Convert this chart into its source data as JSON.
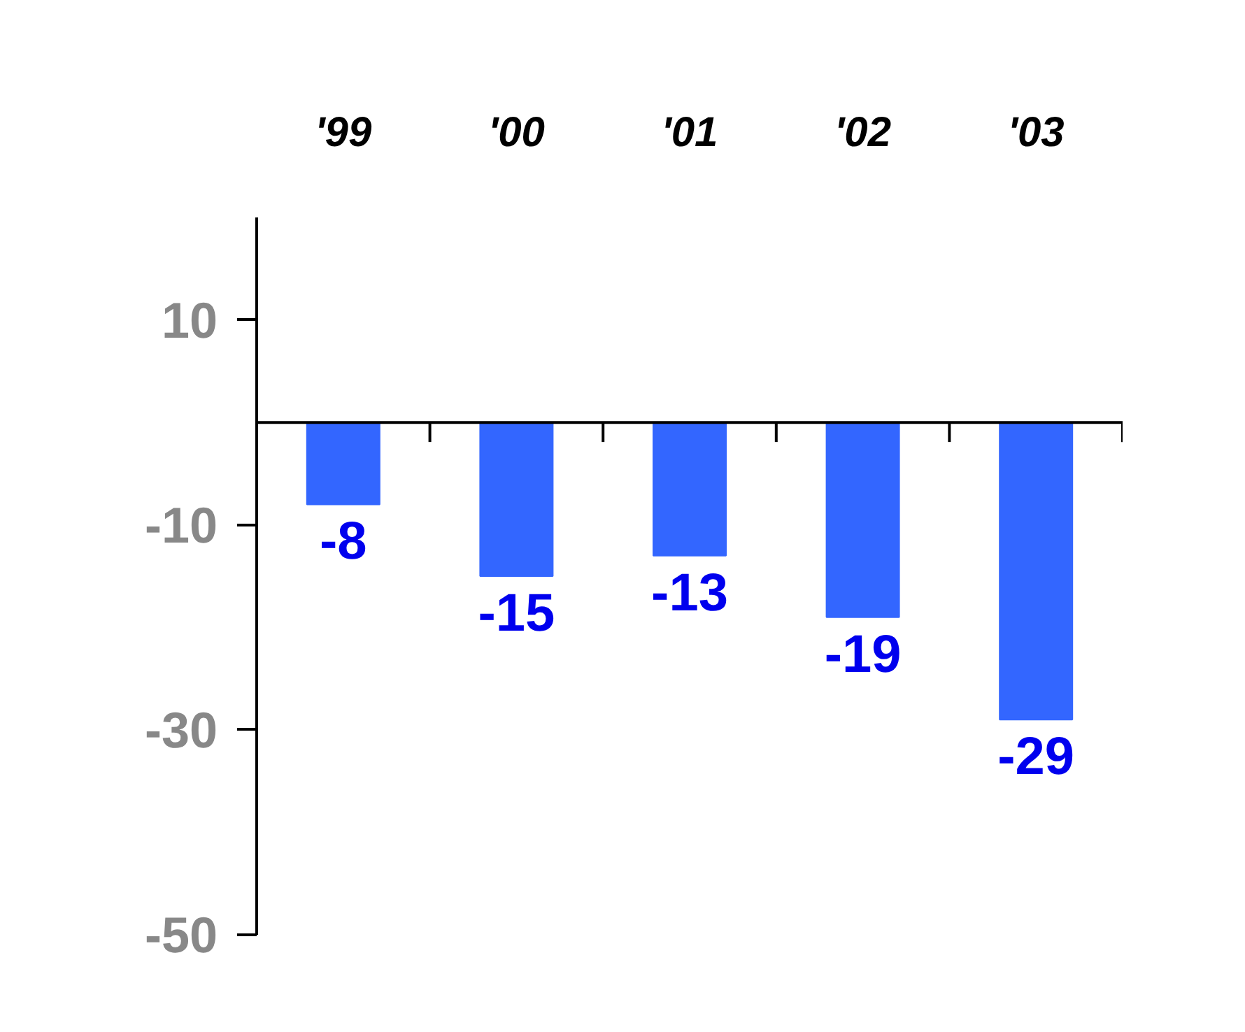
{
  "chart_data": {
    "type": "bar",
    "categories": [
      "'99",
      "'00",
      "'01",
      "'02",
      "'03"
    ],
    "values": [
      -8,
      -15,
      -13,
      -19,
      -29
    ],
    "color": "#3366ff",
    "ylim": [
      -50,
      20
    ],
    "yticks": [
      10,
      -10,
      -30,
      -50
    ],
    "data_labels": true,
    "grid": false
  }
}
